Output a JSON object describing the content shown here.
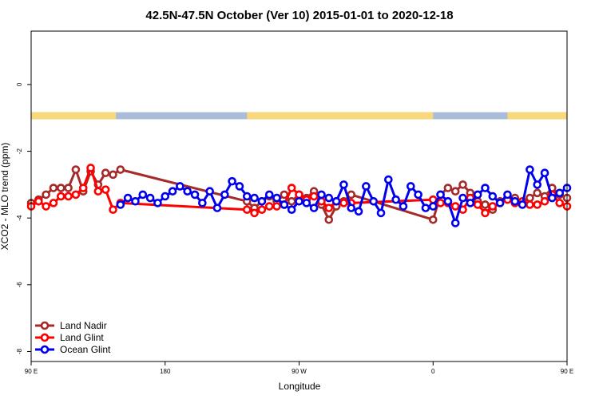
{
  "chart_data": {
    "type": "line",
    "title": "42.5N-47.5N October (Ver 10)   2015-01-01 to 2020-12-18",
    "xlabel": "Longitude",
    "ylabel": "XCO2 - MLO trend (ppm)",
    "xlim": [
      90,
      450
    ],
    "ylim": [
      -8.3,
      1.6
    ],
    "x_ticks": [
      {
        "value": 90,
        "label": "90 E"
      },
      {
        "value": 180,
        "label": "180"
      },
      {
        "value": 270,
        "label": "90 W"
      },
      {
        "value": 360,
        "label": "0"
      },
      {
        "value": 450,
        "label": "90 E"
      },
      {
        "value": 540,
        "label": "180"
      }
    ],
    "y_ticks": [
      {
        "value": 0,
        "label": "0"
      },
      {
        "value": -2,
        "label": "-2"
      },
      {
        "value": -4,
        "label": "-4"
      },
      {
        "value": -6,
        "label": "-6"
      },
      {
        "value": -8,
        "label": "-8"
      }
    ],
    "land_mask": {
      "y_range": [
        -1.04,
        -0.83
      ],
      "ocean_color": "#a9bcd9",
      "land_color": "#f8d87a",
      "land_segments": [
        [
          90,
          147
        ],
        [
          235,
          360
        ],
        [
          410,
          450
        ]
      ]
    },
    "legend": {
      "position": "bottom-left"
    },
    "series": [
      {
        "name": "Land Nadir",
        "color": "#a52a2a",
        "x": [
          90,
          95,
          100,
          105,
          110,
          115,
          120,
          125,
          130,
          135,
          140,
          145,
          150,
          235,
          240,
          245,
          250,
          255,
          260,
          265,
          270,
          275,
          280,
          285,
          290,
          295,
          300,
          305,
          360,
          365,
          370,
          375,
          380,
          385,
          390,
          395,
          400,
          405,
          410,
          415,
          420,
          425,
          430,
          435,
          440,
          445,
          450
        ],
        "y": [
          -3.55,
          -3.45,
          -3.3,
          -3.1,
          -3.1,
          -3.1,
          -2.55,
          -3.2,
          -2.6,
          -3.0,
          -2.65,
          -2.7,
          -2.55,
          -3.5,
          -3.7,
          -3.5,
          -3.35,
          -3.5,
          -3.3,
          -3.5,
          -3.3,
          -3.4,
          -3.2,
          -3.6,
          -4.05,
          -3.65,
          -3.5,
          -3.3,
          -4.05,
          -3.3,
          -3.1,
          -3.2,
          -3.0,
          -3.25,
          -3.5,
          -3.6,
          -3.75,
          -3.5,
          -3.4,
          -3.4,
          -3.55,
          -3.4,
          -3.25,
          -3.35,
          -3.1,
          -3.3,
          -3.4
        ]
      },
      {
        "name": "Land Glint",
        "color": "#ff0000",
        "x": [
          90,
          95,
          100,
          105,
          110,
          115,
          120,
          125,
          130,
          135,
          140,
          145,
          150,
          235,
          240,
          245,
          250,
          255,
          260,
          265,
          270,
          275,
          280,
          285,
          290,
          295,
          300,
          305,
          360,
          365,
          370,
          375,
          380,
          385,
          390,
          395,
          400,
          405,
          410,
          415,
          420,
          425,
          430,
          435,
          440,
          445,
          450
        ],
        "y": [
          -3.65,
          -3.5,
          -3.65,
          -3.55,
          -3.35,
          -3.35,
          -3.3,
          -3.1,
          -2.5,
          -3.2,
          -3.15,
          -3.75,
          -3.55,
          -3.75,
          -3.85,
          -3.75,
          -3.65,
          -3.65,
          -3.6,
          -3.1,
          -3.3,
          -3.45,
          -3.35,
          -3.5,
          -3.7,
          -3.5,
          -3.55,
          -3.55,
          -3.45,
          -3.55,
          -3.55,
          -3.65,
          -3.75,
          -3.4,
          -3.6,
          -3.85,
          -3.65,
          -3.55,
          -3.45,
          -3.55,
          -3.5,
          -3.6,
          -3.6,
          -3.5,
          -3.3,
          -3.55,
          -3.65
        ]
      },
      {
        "name": "Ocean Glint",
        "color": "#0000ee",
        "x": [
          150,
          155,
          160,
          165,
          170,
          175,
          180,
          185,
          190,
          195,
          200,
          205,
          210,
          215,
          220,
          225,
          230,
          235,
          240,
          245,
          250,
          255,
          260,
          265,
          270,
          275,
          280,
          285,
          290,
          295,
          300,
          305,
          310,
          315,
          320,
          325,
          330,
          335,
          340,
          345,
          350,
          355,
          360,
          365,
          370,
          375,
          380,
          385,
          390,
          395,
          400,
          405,
          410,
          415,
          420,
          425,
          430,
          435,
          440,
          445,
          450
        ],
        "y": [
          -3.6,
          -3.4,
          -3.5,
          -3.3,
          -3.4,
          -3.55,
          -3.35,
          -3.2,
          -3.05,
          -3.2,
          -3.3,
          -3.55,
          -3.2,
          -3.7,
          -3.3,
          -2.9,
          -3.05,
          -3.35,
          -3.4,
          -3.5,
          -3.3,
          -3.4,
          -3.6,
          -3.75,
          -3.5,
          -3.55,
          -3.7,
          -3.3,
          -3.4,
          -3.5,
          -3.0,
          -3.7,
          -3.8,
          -3.05,
          -3.5,
          -3.85,
          -2.85,
          -3.45,
          -3.65,
          -3.05,
          -3.3,
          -3.7,
          -3.65,
          -3.3,
          -3.5,
          -4.15,
          -3.4,
          -3.55,
          -3.3,
          -3.1,
          -3.35,
          -3.55,
          -3.3,
          -3.5,
          -3.6,
          -2.55,
          -3.0,
          -2.65,
          -3.4,
          -3.25,
          -3.1
        ]
      }
    ]
  }
}
